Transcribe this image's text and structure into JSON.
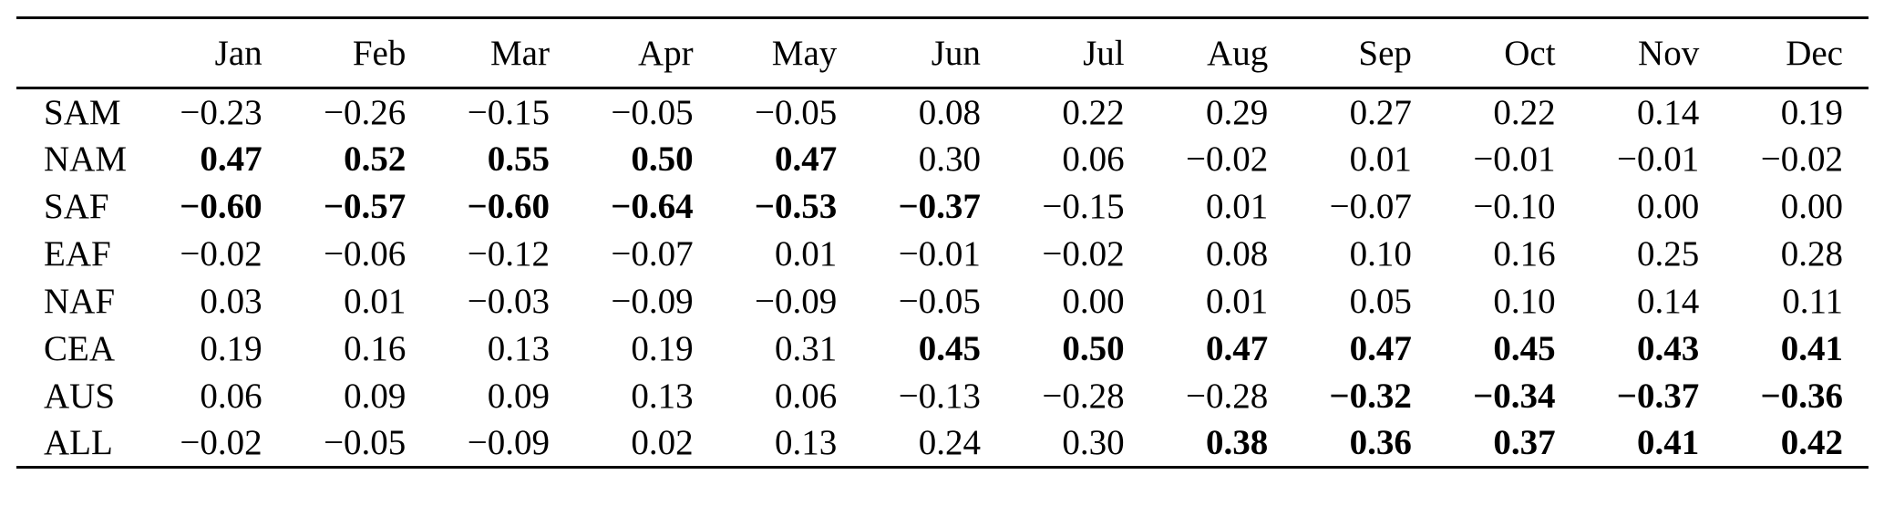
{
  "chart_data": {
    "type": "table",
    "title": "",
    "columns": [
      "Jan",
      "Feb",
      "Mar",
      "Apr",
      "May",
      "Jun",
      "Jul",
      "Aug",
      "Sep",
      "Oct",
      "Nov",
      "Dec"
    ],
    "rows": [
      {
        "label": "SAM",
        "values": [
          "−0.23",
          "−0.26",
          "−0.15",
          "−0.05",
          "−0.05",
          "0.08",
          "0.22",
          "0.29",
          "0.27",
          "0.22",
          "0.14",
          "0.19"
        ],
        "bold": [
          false,
          false,
          false,
          false,
          false,
          false,
          false,
          false,
          false,
          false,
          false,
          false
        ]
      },
      {
        "label": "NAM",
        "values": [
          "0.47",
          "0.52",
          "0.55",
          "0.50",
          "0.47",
          "0.30",
          "0.06",
          "−0.02",
          "0.01",
          "−0.01",
          "−0.01",
          "−0.02"
        ],
        "bold": [
          true,
          true,
          true,
          true,
          true,
          false,
          false,
          false,
          false,
          false,
          false,
          false
        ]
      },
      {
        "label": "SAF",
        "values": [
          "−0.60",
          "−0.57",
          "−0.60",
          "−0.64",
          "−0.53",
          "−0.37",
          "−0.15",
          "0.01",
          "−0.07",
          "−0.10",
          "0.00",
          "0.00"
        ],
        "bold": [
          true,
          true,
          true,
          true,
          true,
          true,
          false,
          false,
          false,
          false,
          false,
          false
        ]
      },
      {
        "label": "EAF",
        "values": [
          "−0.02",
          "−0.06",
          "−0.12",
          "−0.07",
          "0.01",
          "−0.01",
          "−0.02",
          "0.08",
          "0.10",
          "0.16",
          "0.25",
          "0.28"
        ],
        "bold": [
          false,
          false,
          false,
          false,
          false,
          false,
          false,
          false,
          false,
          false,
          false,
          false
        ]
      },
      {
        "label": "NAF",
        "values": [
          "0.03",
          "0.01",
          "−0.03",
          "−0.09",
          "−0.09",
          "−0.05",
          "0.00",
          "0.01",
          "0.05",
          "0.10",
          "0.14",
          "0.11"
        ],
        "bold": [
          false,
          false,
          false,
          false,
          false,
          false,
          false,
          false,
          false,
          false,
          false,
          false
        ]
      },
      {
        "label": "CEA",
        "values": [
          "0.19",
          "0.16",
          "0.13",
          "0.19",
          "0.31",
          "0.45",
          "0.50",
          "0.47",
          "0.47",
          "0.45",
          "0.43",
          "0.41"
        ],
        "bold": [
          false,
          false,
          false,
          false,
          false,
          true,
          true,
          true,
          true,
          true,
          true,
          true
        ]
      },
      {
        "label": "AUS",
        "values": [
          "0.06",
          "0.09",
          "0.09",
          "0.13",
          "0.06",
          "−0.13",
          "−0.28",
          "−0.28",
          "−0.32",
          "−0.34",
          "−0.37",
          "−0.36"
        ],
        "bold": [
          false,
          false,
          false,
          false,
          false,
          false,
          false,
          false,
          true,
          true,
          true,
          true
        ]
      },
      {
        "label": "ALL",
        "values": [
          "−0.02",
          "−0.05",
          "−0.09",
          "0.02",
          "0.13",
          "0.24",
          "0.30",
          "0.38",
          "0.36",
          "0.37",
          "0.41",
          "0.42"
        ],
        "bold": [
          false,
          false,
          false,
          false,
          false,
          false,
          false,
          true,
          true,
          true,
          true,
          true
        ]
      }
    ]
  }
}
